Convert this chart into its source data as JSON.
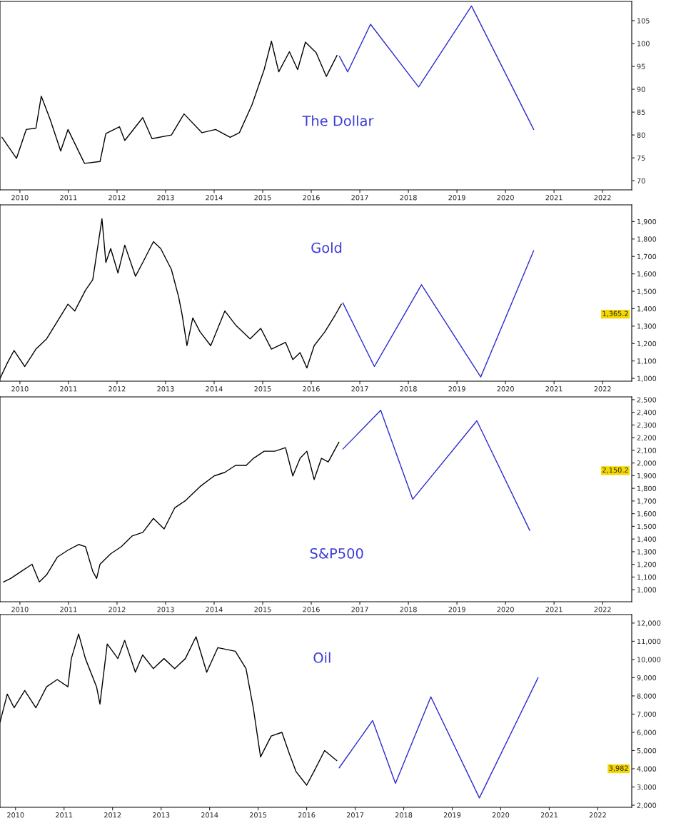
{
  "chart_data": [
    {
      "type": "line",
      "title": "The Dollar",
      "xlim": [
        2009.59,
        2022.6
      ],
      "xticks": [
        2010,
        2011,
        2012,
        2013,
        2014,
        2015,
        2016,
        2017,
        2018,
        2019,
        2020,
        2021,
        2022
      ],
      "ylim": [
        68,
        109.2
      ],
      "yticks": [
        70,
        75,
        80,
        85,
        90,
        95,
        100,
        105
      ],
      "series": [
        {
          "color": "#000000",
          "x": [
            2009.63,
            2009.93,
            2010.13,
            2010.33,
            2010.44,
            2010.62,
            2010.84,
            2010.99,
            2011.33,
            2011.65,
            2011.77,
            2012.05,
            2012.16,
            2012.53,
            2012.72,
            2013.12,
            2013.38,
            2013.75,
            2014.03,
            2014.33,
            2014.52,
            2014.78,
            2015.03,
            2015.18,
            2015.33,
            2015.55,
            2015.72,
            2015.88,
            2016.1,
            2016.31,
            2016.53
          ],
          "values": [
            79.5,
            74.9,
            81.2,
            81.5,
            88.5,
            83.5,
            76.5,
            81.2,
            73.8,
            74.2,
            80.3,
            81.8,
            78.8,
            83.8,
            79.2,
            80.0,
            84.6,
            80.5,
            81.2,
            79.5,
            80.5,
            86.6,
            94.3,
            100.5,
            93.8,
            98.2,
            94.3,
            100.3,
            98.0,
            92.8,
            97.4
          ]
        },
        {
          "color": "#2b2bd0",
          "x": [
            2016.58,
            2016.75,
            2017.22,
            2018.21,
            2019.3,
            2020.58
          ],
          "values": [
            97.2,
            93.8,
            104.2,
            90.5,
            108.2,
            81.2
          ]
        }
      ]
    },
    {
      "type": "line",
      "title": "Gold",
      "xlim": [
        2009.59,
        2022.6
      ],
      "xticks": [
        2010,
        2011,
        2012,
        2013,
        2014,
        2015,
        2016,
        2017,
        2018,
        2019,
        2020,
        2021,
        2022
      ],
      "ylim": [
        984,
        1996
      ],
      "yticks": [
        {
          "value": 1000,
          "label": "1,000"
        },
        {
          "value": 1100,
          "label": "1,100"
        },
        {
          "value": 1200,
          "label": "1,200"
        },
        {
          "value": 1300,
          "label": "1,300"
        },
        {
          "value": 1400,
          "label": "1,400"
        },
        {
          "value": 1500,
          "label": "1,500"
        },
        {
          "value": 1600,
          "label": "1,600"
        },
        {
          "value": 1700,
          "label": "1,700"
        },
        {
          "value": 1800,
          "label": "1,800"
        },
        {
          "value": 1900,
          "label": "1,900"
        }
      ],
      "annotations": [
        "1,365.2"
      ],
      "series": [
        {
          "color": "#000000",
          "x": [
            2009.59,
            2009.74,
            2009.88,
            2010.1,
            2010.33,
            2010.55,
            2010.77,
            2010.99,
            2011.13,
            2011.35,
            2011.5,
            2011.69,
            2011.77,
            2011.87,
            2012.02,
            2012.16,
            2012.38,
            2012.53,
            2012.75,
            2012.9,
            2013.12,
            2013.27,
            2013.34,
            2013.44,
            2013.56,
            2013.71,
            2013.93,
            2014.22,
            2014.44,
            2014.74,
            2014.96,
            2015.18,
            2015.47,
            2015.62,
            2015.77,
            2015.91,
            2016.06,
            2016.28,
            2016.5,
            2016.62
          ],
          "values": [
            1000,
            1088,
            1160,
            1068,
            1168,
            1227,
            1327,
            1426,
            1387,
            1506,
            1566,
            1916,
            1665,
            1745,
            1605,
            1765,
            1586,
            1665,
            1785,
            1745,
            1625,
            1466,
            1367,
            1188,
            1347,
            1267,
            1188,
            1387,
            1307,
            1227,
            1287,
            1168,
            1207,
            1108,
            1148,
            1060,
            1188,
            1267,
            1367,
            1426
          ]
        },
        {
          "color": "#2b2bd0",
          "x": [
            2016.65,
            2017.3,
            2018.27,
            2019.49,
            2020.58
          ],
          "values": [
            1434,
            1068,
            1538,
            1008,
            1733
          ]
        }
      ]
    },
    {
      "type": "line",
      "title": "S&P500",
      "xlim": [
        2009.59,
        2022.6
      ],
      "xticks": [
        2010,
        2011,
        2012,
        2013,
        2014,
        2015,
        2016,
        2017,
        2018,
        2019,
        2020,
        2021,
        2022
      ],
      "ylim": [
        905,
        2522
      ],
      "yticks": [
        {
          "value": 1000,
          "label": "1,000"
        },
        {
          "value": 1100,
          "label": "1,100"
        },
        {
          "value": 1200,
          "label": "1,200"
        },
        {
          "value": 1300,
          "label": "1,300"
        },
        {
          "value": 1400,
          "label": "1,400"
        },
        {
          "value": 1500,
          "label": "1,500"
        },
        {
          "value": 1600,
          "label": "1,600"
        },
        {
          "value": 1700,
          "label": "1,700"
        },
        {
          "value": 1800,
          "label": "1,800"
        },
        {
          "value": 1900,
          "label": "1,900"
        },
        {
          "value": 2000,
          "label": "2,000"
        },
        {
          "value": 2100,
          "label": "2,100"
        },
        {
          "value": 2200,
          "label": "2,200"
        },
        {
          "value": 2300,
          "label": "2,300"
        },
        {
          "value": 2400,
          "label": "2,400"
        },
        {
          "value": 2500,
          "label": "2,500"
        }
      ],
      "annotations": [
        "2,150.2"
      ],
      "series": [
        {
          "color": "#000000",
          "x": [
            2009.66,
            2009.81,
            2010.03,
            2010.25,
            2010.4,
            2010.55,
            2010.77,
            2010.99,
            2011.21,
            2011.35,
            2011.5,
            2011.58,
            2011.65,
            2011.87,
            2012.09,
            2012.31,
            2012.53,
            2012.75,
            2012.97,
            2013.19,
            2013.41,
            2013.71,
            2014.0,
            2014.22,
            2014.44,
            2014.66,
            2014.81,
            2015.03,
            2015.25,
            2015.47,
            2015.62,
            2015.77,
            2015.91,
            2016.06,
            2016.21,
            2016.35,
            2016.57
          ],
          "values": [
            1061,
            1089,
            1145,
            1201,
            1061,
            1117,
            1257,
            1312,
            1357,
            1340,
            1145,
            1089,
            1201,
            1284,
            1340,
            1424,
            1452,
            1563,
            1480,
            1647,
            1703,
            1814,
            1898,
            1926,
            1981,
            1981,
            2037,
            2093,
            2093,
            2121,
            1898,
            2037,
            2093,
            1870,
            2037,
            2009,
            2165
          ]
        },
        {
          "color": "#2b2bd0",
          "x": [
            2016.65,
            2017.43,
            2018.09,
            2019.41,
            2020.5
          ],
          "values": [
            2110,
            2416,
            1714,
            2333,
            1468
          ]
        }
      ]
    },
    {
      "type": "line",
      "title": "Oil",
      "xlim": [
        2009.68,
        2022.7
      ],
      "xticks": [
        2010,
        2011,
        2012,
        2013,
        2014,
        2015,
        2016,
        2017,
        2018,
        2019,
        2020,
        2021,
        2022
      ],
      "ylim": [
        1884,
        12465
      ],
      "yticks": [
        {
          "value": 2000,
          "label": "2,000"
        },
        {
          "value": 3000,
          "label": "3,000"
        },
        {
          "value": 4000,
          "label": "4,000"
        },
        {
          "value": 5000,
          "label": "5,000"
        },
        {
          "value": 6000,
          "label": "6,000"
        },
        {
          "value": 7000,
          "label": "7,000"
        },
        {
          "value": 8000,
          "label": "8,000"
        },
        {
          "value": 9000,
          "label": "9,000"
        },
        {
          "value": 10000,
          "label": "10,000"
        },
        {
          "value": 11000,
          "label": "11,000"
        },
        {
          "value": 12000,
          "label": "12,000"
        }
      ],
      "annotations": [
        "3,982"
      ],
      "series": [
        {
          "color": "#000000",
          "x": [
            2009.68,
            2009.83,
            2009.97,
            2010.19,
            2010.42,
            2010.64,
            2010.86,
            2011.08,
            2011.15,
            2011.3,
            2011.44,
            2011.67,
            2011.74,
            2011.89,
            2012.11,
            2012.25,
            2012.47,
            2012.62,
            2012.84,
            2013.06,
            2013.28,
            2013.5,
            2013.72,
            2013.94,
            2014.17,
            2014.53,
            2014.75,
            2014.9,
            2015.05,
            2015.27,
            2015.49,
            2015.64,
            2015.78,
            2016.0,
            2016.15,
            2016.37,
            2016.62
          ],
          "values": [
            6550,
            8100,
            7350,
            8300,
            7350,
            8500,
            8900,
            8500,
            10050,
            11400,
            10050,
            8500,
            7550,
            10850,
            10050,
            11050,
            9300,
            10250,
            9500,
            10050,
            9500,
            10050,
            11250,
            9300,
            10650,
            10450,
            9500,
            7350,
            4650,
            5800,
            6000,
            4850,
            3850,
            3100,
            3850,
            5000,
            4450
          ]
        },
        {
          "color": "#2b2bd0",
          "x": [
            2016.67,
            2017.36,
            2017.83,
            2018.56,
            2019.56,
            2020.77
          ],
          "values": [
            4050,
            6650,
            3200,
            7950,
            2400,
            9000
          ]
        }
      ]
    }
  ]
}
